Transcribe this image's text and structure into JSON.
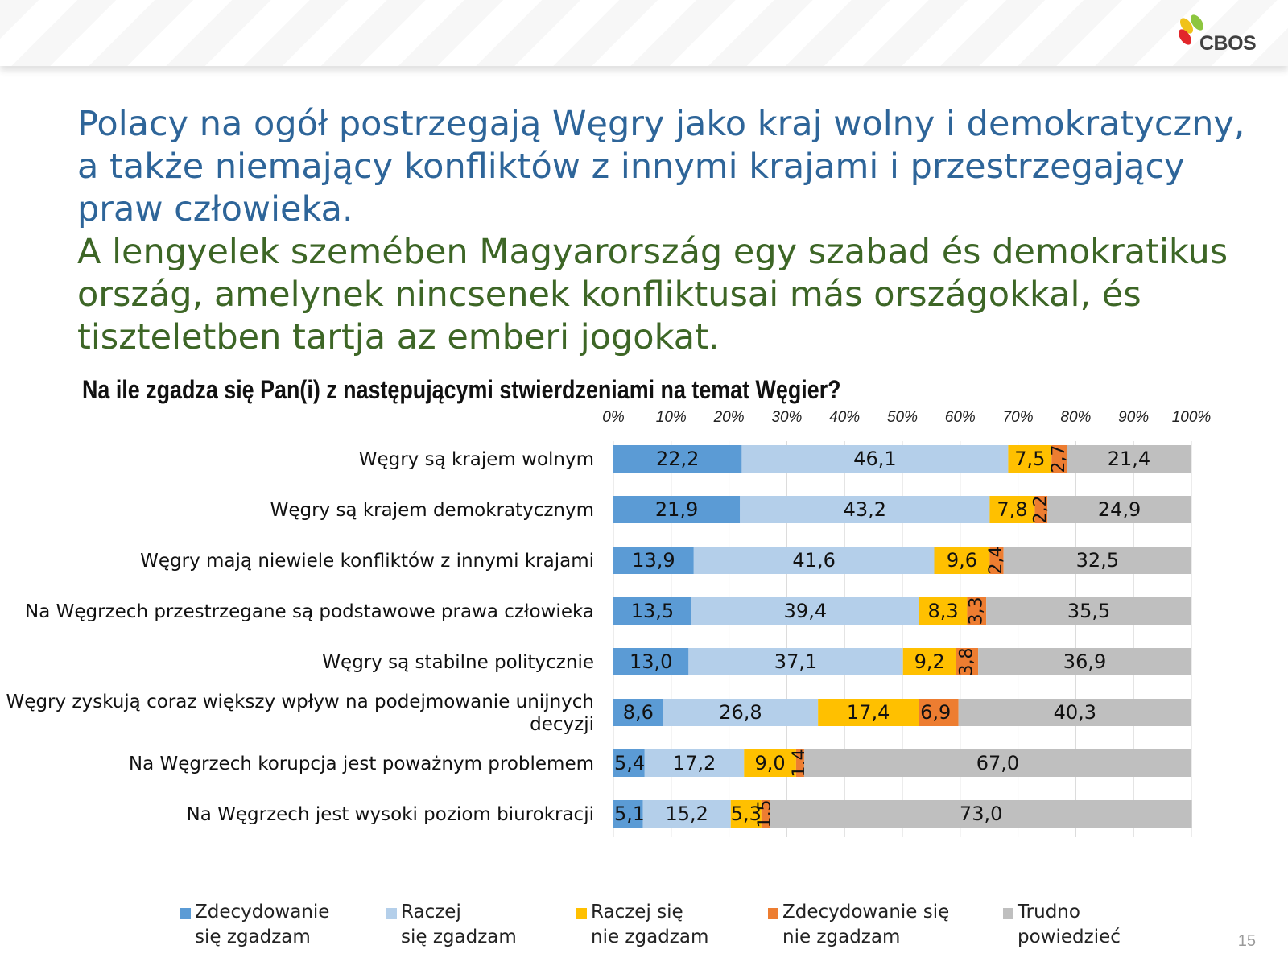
{
  "logo": {
    "text": "CBOS"
  },
  "headline": {
    "polish_lines": [
      "Polacy na ogół postrzegają Węgry jako kraj wolny i demokratyczny,",
      "a także niemający konfliktów z innymi krajami i przestrzegający",
      "praw człowieka."
    ],
    "hungarian_lines": [
      "A lengyelek szemében Magyarország egy szabad és demokratikus",
      "ország, amelynek nincsenek konfliktusai más országokkal, és",
      "tiszteletben tartja az emberi jogokat."
    ]
  },
  "question": "Na ile zgadza się Pan(i) z następującymi stwierdzeniami na temat Węgier?",
  "page_number": "15",
  "chart_data": {
    "type": "bar",
    "orientation": "horizontal",
    "stacked": "percent",
    "title": "Na ile zgadza się Pan(i) z następującymi stwierdzeniami na temat Węgier?",
    "x_ticks": [
      "0%",
      "10%",
      "20%",
      "30%",
      "40%",
      "50%",
      "60%",
      "70%",
      "80%",
      "90%",
      "100%"
    ],
    "x_axis_position": "top",
    "xlim": [
      0,
      100
    ],
    "grid": true,
    "legend_position": "bottom",
    "categories": [
      [
        "Węgry są krajem wolnym"
      ],
      [
        "Węgry są krajem demokratycznym"
      ],
      [
        "Węgry mają niewiele konfliktów z innymi krajami"
      ],
      [
        "Na Węgrzech przestrzegane są podstawowe prawa człowieka"
      ],
      [
        "Węgry są stabilne politycznie"
      ],
      [
        "Węgry zyskują coraz większy wpływ na podejmowanie unijnych",
        "decyzji"
      ],
      [
        "Na Węgrzech korupcja jest poważnym problemem"
      ],
      [
        "Na Węgrzech jest wysoki poziom biurokracji"
      ]
    ],
    "series": [
      {
        "name_lines": [
          "Zdecydowanie",
          "się zgadzam"
        ],
        "color": "#5b9bd5",
        "values": [
          22.2,
          21.9,
          13.9,
          13.5,
          13.0,
          8.6,
          5.4,
          5.1
        ],
        "labels": [
          "22,2",
          "21,9",
          "13,9",
          "13,5",
          "13,0",
          "8,6",
          "5,4",
          "5,1"
        ]
      },
      {
        "name_lines": [
          "Raczej",
          "się zgadzam"
        ],
        "color": "#b4cfea",
        "values": [
          46.1,
          43.2,
          41.6,
          39.4,
          37.1,
          26.8,
          17.2,
          15.2
        ],
        "labels": [
          "46,1",
          "43,2",
          "41,6",
          "39,4",
          "37,1",
          "26,8",
          "17,2",
          "15,2"
        ]
      },
      {
        "name_lines": [
          "Raczej się",
          "nie zgadzam"
        ],
        "color": "#ffc000",
        "values": [
          7.5,
          7.8,
          9.6,
          8.3,
          9.2,
          17.4,
          9.0,
          5.3
        ],
        "labels": [
          "7,5",
          "7,8",
          "9,6",
          "8,3",
          "9,2",
          "17,4",
          "9,0",
          "5,3"
        ]
      },
      {
        "name_lines": [
          "Zdecydowanie się",
          "nie zgadzam"
        ],
        "color": "#ed7d31",
        "values": [
          2.7,
          2.2,
          2.4,
          3.3,
          3.8,
          6.9,
          1.4,
          1.5
        ],
        "labels": [
          "2,7",
          "2,2",
          "2,4",
          "3,3",
          "3,8",
          "6,9",
          "1,4",
          "1,5"
        ]
      },
      {
        "name_lines": [
          "Trudno",
          "powiedzieć"
        ],
        "color": "#bfbfbf",
        "values": [
          21.4,
          24.9,
          32.5,
          35.5,
          36.9,
          40.3,
          67.0,
          73.0
        ],
        "labels": [
          "21,4",
          "24,9",
          "32,5",
          "35,5",
          "36,9",
          "40,3",
          "67,0",
          "73,0"
        ]
      }
    ]
  }
}
